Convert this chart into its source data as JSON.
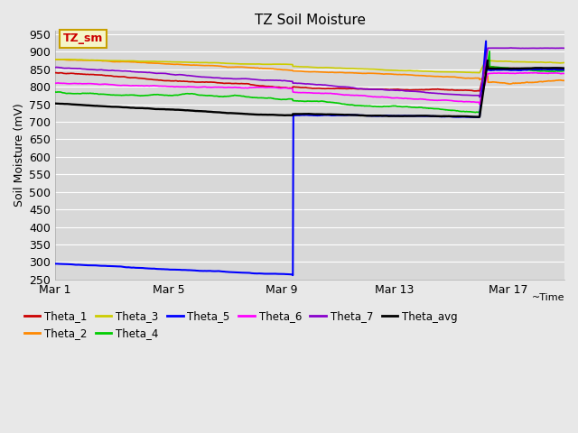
{
  "title": "TZ Soil Moisture",
  "ylabel": "Soil Moisture (mV)",
  "ylim": [
    250,
    960
  ],
  "yticks": [
    250,
    300,
    350,
    400,
    450,
    500,
    550,
    600,
    650,
    700,
    750,
    800,
    850,
    900,
    950
  ],
  "xtick_positions": [
    0,
    4,
    8,
    12,
    16
  ],
  "xtick_labels": [
    "Mar 1",
    "Mar 5",
    "Mar 9",
    "Mar 13",
    "Mar 17"
  ],
  "total_days": 18,
  "fig_bg": "#e8e8e8",
  "plot_bg": "#d8d8d8",
  "grid_color": "#ffffff",
  "legend_label": "TZ_sm",
  "legend_box_fc": "#f5f5c8",
  "legend_box_ec": "#c8a000",
  "colors": {
    "Theta_1": "#cc0000",
    "Theta_2": "#ff8800",
    "Theta_3": "#cccc00",
    "Theta_4": "#00cc00",
    "Theta_5": "#0000ff",
    "Theta_6": "#ff00ff",
    "Theta_7": "#8800cc",
    "Theta_avg": "#000000"
  },
  "mar9_day": 8.4,
  "event_day": 15.0,
  "n_pts": 2000
}
